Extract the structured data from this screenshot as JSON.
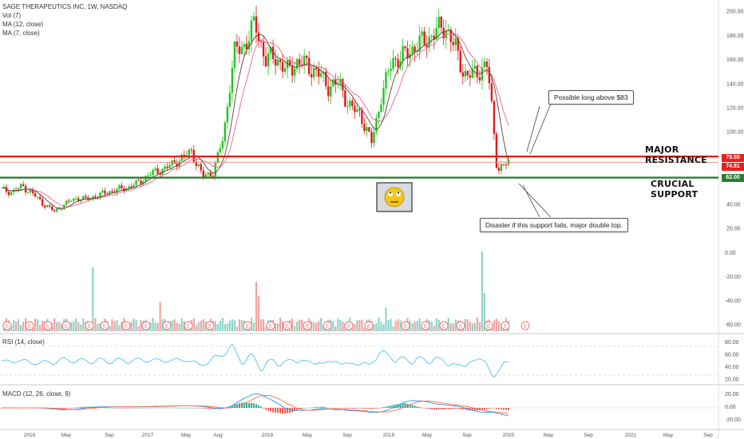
{
  "header": {
    "symbol_line": "SAGE THERAPEUTICS INC, 1W, NASDAQ",
    "indicators": [
      "Vol (7)",
      "MA (12, close)",
      "MA (7, close)"
    ]
  },
  "panes": {
    "rsi_label": "RSI (14, close)",
    "macd_label": "MACD (12, 26, close, 9)"
  },
  "annotations": {
    "long_note": "Possible long above $83",
    "disaster_note": "Disaster if this support fails, major double top.",
    "resistance_label": "MAJOR RESISTANCE",
    "support_label": "CRUCIAL SUPPORT"
  },
  "price_tags": {
    "resistance": "79.55",
    "last": "74.81",
    "support": "62.00"
  },
  "colors": {
    "up": "#26a69a",
    "down": "#ef5350",
    "bull_candle": "#21c521",
    "bear_candle": "#e01a1a",
    "resistance_line": "#e3211f",
    "support_line": "#2e7d32",
    "rsi_line": "#4fc3f7",
    "macd_line": "#2196f3",
    "signal_line": "#ff7043"
  },
  "chart_data": {
    "type": "candlestick",
    "x_ticks": [
      "2016",
      "May",
      "Sep",
      "2017",
      "May",
      "Aug",
      "2018",
      "May",
      "Sep",
      "2019",
      "May",
      "Sep",
      "2020",
      "May",
      "Sep",
      "2021",
      "May",
      "Sep"
    ],
    "price_axis_ticks": [
      "200.00",
      "180.00",
      "160.00",
      "140.00",
      "120.00",
      "100.00",
      "80.00",
      "60.00",
      "40.00",
      "20.00"
    ],
    "volume_axis_ticks": [
      "0.00",
      "-20.00",
      "-40.00",
      "-60.00"
    ],
    "rsi_axis_ticks": [
      "80.00",
      "60.00",
      "40.00",
      "20.00"
    ],
    "macd_axis_ticks": [
      "20.00",
      "0.00",
      "-20.00"
    ],
    "resistance_level": 79.55,
    "last_price": 74.81,
    "support_level": 62.0,
    "price_close_path": [
      {
        "date": "2016-01",
        "close": 52
      },
      {
        "date": "2016-02",
        "close": 50
      },
      {
        "date": "2016-03",
        "close": 55
      },
      {
        "date": "2016-04",
        "close": 48
      },
      {
        "date": "2016-05",
        "close": 40
      },
      {
        "date": "2016-06",
        "close": 34
      },
      {
        "date": "2016-07",
        "close": 40
      },
      {
        "date": "2016-08",
        "close": 45
      },
      {
        "date": "2016-09",
        "close": 44
      },
      {
        "date": "2016-10",
        "close": 47
      },
      {
        "date": "2016-11",
        "close": 50
      },
      {
        "date": "2016-12",
        "close": 52
      },
      {
        "date": "2017-01",
        "close": 54
      },
      {
        "date": "2017-02",
        "close": 58
      },
      {
        "date": "2017-03",
        "close": 65
      },
      {
        "date": "2017-04",
        "close": 68
      },
      {
        "date": "2017-05",
        "close": 72
      },
      {
        "date": "2017-06",
        "close": 78
      },
      {
        "date": "2017-07",
        "close": 84
      },
      {
        "date": "2017-08",
        "close": 63
      },
      {
        "date": "2017-09",
        "close": 66
      },
      {
        "date": "2017-10",
        "close": 95
      },
      {
        "date": "2017-11",
        "close": 165
      },
      {
        "date": "2017-12",
        "close": 172
      },
      {
        "date": "2018-01",
        "close": 190
      },
      {
        "date": "2018-02",
        "close": 160
      },
      {
        "date": "2018-03",
        "close": 162
      },
      {
        "date": "2018-04",
        "close": 150
      },
      {
        "date": "2018-05",
        "close": 158
      },
      {
        "date": "2018-06",
        "close": 155
      },
      {
        "date": "2018-07",
        "close": 148
      },
      {
        "date": "2018-08",
        "close": 138
      },
      {
        "date": "2018-09",
        "close": 140
      },
      {
        "date": "2018-10",
        "close": 120
      },
      {
        "date": "2018-11",
        "close": 115
      },
      {
        "date": "2018-12",
        "close": 90
      },
      {
        "date": "2019-01",
        "close": 130
      },
      {
        "date": "2019-02",
        "close": 160
      },
      {
        "date": "2019-03",
        "close": 162
      },
      {
        "date": "2019-04",
        "close": 170
      },
      {
        "date": "2019-05",
        "close": 175
      },
      {
        "date": "2019-06",
        "close": 182
      },
      {
        "date": "2019-07",
        "close": 188
      },
      {
        "date": "2019-08",
        "close": 168
      },
      {
        "date": "2019-09",
        "close": 145
      },
      {
        "date": "2019-10",
        "close": 150
      },
      {
        "date": "2019-11",
        "close": 155
      },
      {
        "date": "2019-12",
        "close": 68
      },
      {
        "date": "2020-01",
        "close": 74.81
      }
    ]
  }
}
